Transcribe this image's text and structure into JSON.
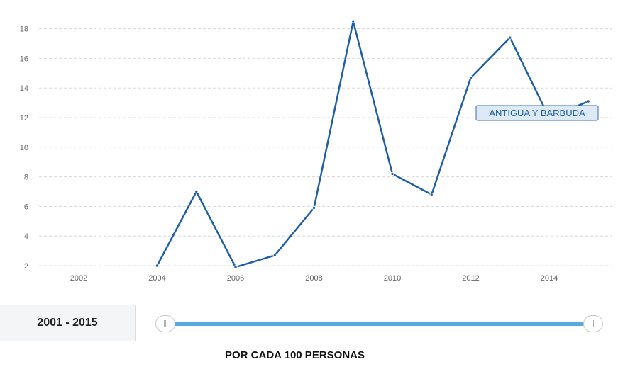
{
  "chart_data": {
    "type": "line",
    "x": [
      2004,
      2005,
      2006,
      2007,
      2008,
      2009,
      2010,
      2011,
      2012,
      2013,
      2014,
      2015
    ],
    "series": [
      {
        "name": "ANTIGUA Y BARBUDA",
        "values": [
          2.0,
          7.0,
          1.9,
          2.7,
          5.9,
          18.5,
          8.2,
          6.8,
          14.7,
          17.4,
          12.0,
          13.1
        ]
      }
    ],
    "xticks": [
      "2002",
      "2004",
      "2006",
      "2008",
      "2010",
      "2012",
      "2014"
    ],
    "yticks": [
      "2",
      "4",
      "6",
      "8",
      "10",
      "12",
      "14",
      "16",
      "18"
    ],
    "xlim": [
      2000,
      2015.8
    ],
    "ylim": [
      2,
      18.5
    ],
    "grid": "horizontal-dashed",
    "series_label_position": "end-of-line",
    "color": "#1f5fa3"
  },
  "range": {
    "label": "2001 - 2015",
    "handle_left_icon": "grip-icon",
    "handle_right_icon": "grip-icon",
    "track_color": "#5aa9de"
  },
  "unit_label": "POR CADA 100 PERSONAS"
}
